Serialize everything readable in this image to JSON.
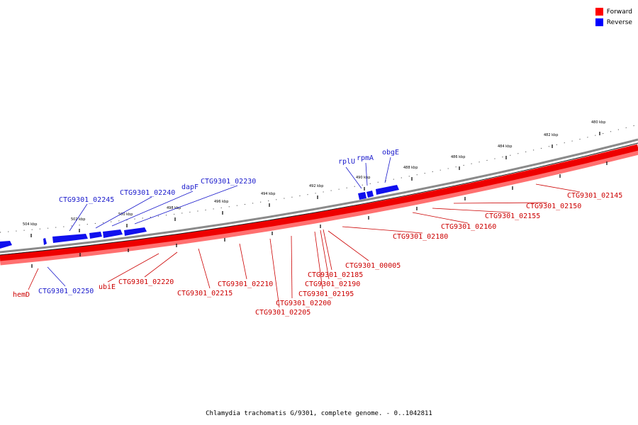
{
  "legend": {
    "forward": {
      "label": "Forward",
      "color": "#ff0000"
    },
    "reverse": {
      "label": "Reverse",
      "color": "#0000ff"
    }
  },
  "caption": "Chlamydia trachomatis G/9301, complete genome. - 0..1042811",
  "ticks": [
    "480 kbp",
    "482 kbp",
    "484 kbp",
    "486 kbp",
    "488 kbp",
    "490 kbp",
    "492 kbp",
    "494 kbp",
    "496 kbp",
    "498 kbp",
    "500 kbp",
    "502 kbp",
    "504 kbp"
  ],
  "genes": {
    "reverse": [
      "obgE",
      "rpmA",
      "rplU",
      "CTG9301_02230",
      "dapF",
      "CTG9301_02240",
      "CTG9301_02245",
      "CTG9301_02250"
    ],
    "forward": [
      "CTG9301_02145",
      "CTG9301_02150",
      "CTG9301_02155",
      "CTG9301_02160",
      "CTG9301_02180",
      "CTG9301_00005",
      "CTG9301_02185",
      "CTG9301_02190",
      "CTG9301_02195",
      "CTG9301_02200",
      "CTG9301_02205",
      "CTG9301_02210",
      "CTG9301_02215",
      "ubiE",
      "CTG9301_02220",
      "hemD"
    ]
  }
}
